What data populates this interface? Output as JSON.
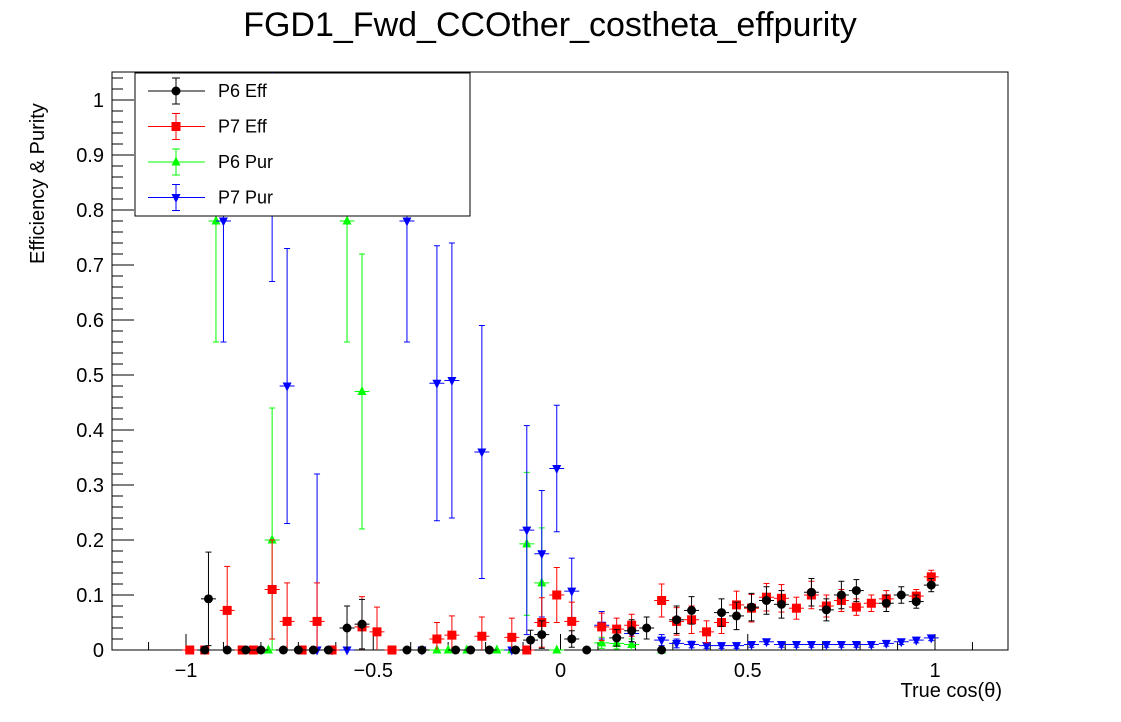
{
  "chart_data": {
    "type": "scatter",
    "title": "FGD1_Fwd_CCOther_costheta_effpurity",
    "xlabel": "True cos(θ)",
    "ylabel": "Efficiency & Purity",
    "xlim": [
      -1.2,
      1.2
    ],
    "ylim": [
      0,
      1.05
    ],
    "x_ticks": [
      {
        "value": -1,
        "label": "−1"
      },
      {
        "value": -0.5,
        "label": "−0.5"
      },
      {
        "value": 0,
        "label": "0"
      },
      {
        "value": 0.5,
        "label": "0.5"
      },
      {
        "value": 1,
        "label": "1"
      }
    ],
    "y_ticks": [
      {
        "value": 0,
        "label": "0"
      },
      {
        "value": 0.1,
        "label": "0.1"
      },
      {
        "value": 0.2,
        "label": "0.2"
      },
      {
        "value": 0.3,
        "label": "0.3"
      },
      {
        "value": 0.4,
        "label": "0.4"
      },
      {
        "value": 0.5,
        "label": "0.5"
      },
      {
        "value": 0.6,
        "label": "0.6"
      },
      {
        "value": 0.7,
        "label": "0.7"
      },
      {
        "value": 0.8,
        "label": "0.8"
      },
      {
        "value": 0.9,
        "label": "0.9"
      },
      {
        "value": 1,
        "label": "1"
      }
    ],
    "grid": false,
    "legend_position": "top-left",
    "series": [
      {
        "name": "P6 Eff",
        "color": "#000000",
        "marker": "circle",
        "points": [
          {
            "x": -0.95,
            "y": 0.0,
            "yerr": 0.0
          },
          {
            "x": -0.94,
            "y": 0.093,
            "yerr": 0.085
          },
          {
            "x": -0.89,
            "y": 0.0,
            "yerr": 0.0
          },
          {
            "x": -0.84,
            "y": 0.0,
            "yerr": 0.0
          },
          {
            "x": -0.8,
            "y": 0.0,
            "yerr": 0.0
          },
          {
            "x": -0.74,
            "y": 0.0,
            "yerr": 0.0
          },
          {
            "x": -0.7,
            "y": 0.0,
            "yerr": 0.0
          },
          {
            "x": -0.66,
            "y": 0.0,
            "yerr": 0.0
          },
          {
            "x": -0.62,
            "y": 0.0,
            "yerr": 0.0
          },
          {
            "x": -0.57,
            "y": 0.04,
            "yerr": 0.04
          },
          {
            "x": -0.53,
            "y": 0.047,
            "yerr": 0.045
          },
          {
            "x": -0.41,
            "y": 0.0,
            "yerr": 0.0
          },
          {
            "x": -0.37,
            "y": 0.0,
            "yerr": 0.0
          },
          {
            "x": -0.28,
            "y": 0.0,
            "yerr": 0.0
          },
          {
            "x": -0.24,
            "y": 0.0,
            "yerr": 0.0
          },
          {
            "x": -0.19,
            "y": 0.0,
            "yerr": 0.0
          },
          {
            "x": -0.12,
            "y": 0.0,
            "yerr": 0.0
          },
          {
            "x": -0.08,
            "y": 0.018,
            "yerr": 0.018
          },
          {
            "x": -0.05,
            "y": 0.028,
            "yerr": 0.025
          },
          {
            "x": 0.03,
            "y": 0.02,
            "yerr": 0.015
          },
          {
            "x": 0.07,
            "y": 0.0,
            "yerr": 0.0
          },
          {
            "x": 0.15,
            "y": 0.022,
            "yerr": 0.015
          },
          {
            "x": 0.19,
            "y": 0.035,
            "yerr": 0.02
          },
          {
            "x": 0.23,
            "y": 0.04,
            "yerr": 0.02
          },
          {
            "x": 0.27,
            "y": 0.0,
            "yerr": 0.0
          },
          {
            "x": 0.31,
            "y": 0.055,
            "yerr": 0.025
          },
          {
            "x": 0.35,
            "y": 0.072,
            "yerr": 0.025
          },
          {
            "x": 0.43,
            "y": 0.068,
            "yerr": 0.025
          },
          {
            "x": 0.47,
            "y": 0.062,
            "yerr": 0.025
          },
          {
            "x": 0.51,
            "y": 0.078,
            "yerr": 0.025
          },
          {
            "x": 0.55,
            "y": 0.09,
            "yerr": 0.025
          },
          {
            "x": 0.59,
            "y": 0.083,
            "yerr": 0.025
          },
          {
            "x": 0.67,
            "y": 0.105,
            "yerr": 0.025
          },
          {
            "x": 0.71,
            "y": 0.073,
            "yerr": 0.02
          },
          {
            "x": 0.75,
            "y": 0.1,
            "yerr": 0.025
          },
          {
            "x": 0.79,
            "y": 0.108,
            "yerr": 0.02
          },
          {
            "x": 0.87,
            "y": 0.085,
            "yerr": 0.015
          },
          {
            "x": 0.91,
            "y": 0.1,
            "yerr": 0.015
          },
          {
            "x": 0.95,
            "y": 0.088,
            "yerr": 0.012
          },
          {
            "x": 0.99,
            "y": 0.118,
            "yerr": 0.012
          }
        ]
      },
      {
        "name": "P7 Eff",
        "color": "#ff0000",
        "marker": "square",
        "points": [
          {
            "x": -0.99,
            "y": 0.0,
            "yerr": 0.0
          },
          {
            "x": -0.95,
            "y": 0.0,
            "yerr": 0.0
          },
          {
            "x": -0.89,
            "y": 0.072,
            "yerr": 0.08
          },
          {
            "x": -0.85,
            "y": 0.0,
            "yerr": 0.0
          },
          {
            "x": -0.82,
            "y": 0.0,
            "yerr": 0.0
          },
          {
            "x": -0.77,
            "y": 0.11,
            "yerr": 0.09
          },
          {
            "x": -0.73,
            "y": 0.052,
            "yerr": 0.07
          },
          {
            "x": -0.69,
            "y": 0.0,
            "yerr": 0.0
          },
          {
            "x": -0.65,
            "y": 0.052,
            "yerr": 0.07
          },
          {
            "x": -0.61,
            "y": 0.0,
            "yerr": 0.0
          },
          {
            "x": -0.53,
            "y": 0.042,
            "yerr": 0.055
          },
          {
            "x": -0.49,
            "y": 0.033,
            "yerr": 0.045
          },
          {
            "x": -0.45,
            "y": 0.0,
            "yerr": 0.0
          },
          {
            "x": -0.33,
            "y": 0.02,
            "yerr": 0.03
          },
          {
            "x": -0.29,
            "y": 0.027,
            "yerr": 0.035
          },
          {
            "x": -0.21,
            "y": 0.025,
            "yerr": 0.035
          },
          {
            "x": -0.13,
            "y": 0.023,
            "yerr": 0.035
          },
          {
            "x": -0.09,
            "y": 0.0,
            "yerr": 0.0
          },
          {
            "x": -0.05,
            "y": 0.05,
            "yerr": 0.045
          },
          {
            "x": -0.01,
            "y": 0.1,
            "yerr": 0.05
          },
          {
            "x": 0.03,
            "y": 0.052,
            "yerr": 0.035
          },
          {
            "x": 0.11,
            "y": 0.042,
            "yerr": 0.025
          },
          {
            "x": 0.15,
            "y": 0.038,
            "yerr": 0.02
          },
          {
            "x": 0.19,
            "y": 0.045,
            "yerr": 0.02
          },
          {
            "x": 0.27,
            "y": 0.09,
            "yerr": 0.03
          },
          {
            "x": 0.31,
            "y": 0.052,
            "yerr": 0.025
          },
          {
            "x": 0.35,
            "y": 0.055,
            "yerr": 0.025
          },
          {
            "x": 0.39,
            "y": 0.033,
            "yerr": 0.02
          },
          {
            "x": 0.43,
            "y": 0.05,
            "yerr": 0.02
          },
          {
            "x": 0.47,
            "y": 0.082,
            "yerr": 0.025
          },
          {
            "x": 0.51,
            "y": 0.076,
            "yerr": 0.025
          },
          {
            "x": 0.55,
            "y": 0.096,
            "yerr": 0.025
          },
          {
            "x": 0.59,
            "y": 0.094,
            "yerr": 0.025
          },
          {
            "x": 0.63,
            "y": 0.076,
            "yerr": 0.02
          },
          {
            "x": 0.67,
            "y": 0.1,
            "yerr": 0.025
          },
          {
            "x": 0.71,
            "y": 0.08,
            "yerr": 0.02
          },
          {
            "x": 0.75,
            "y": 0.09,
            "yerr": 0.02
          },
          {
            "x": 0.79,
            "y": 0.078,
            "yerr": 0.015
          },
          {
            "x": 0.83,
            "y": 0.085,
            "yerr": 0.015
          },
          {
            "x": 0.87,
            "y": 0.093,
            "yerr": 0.015
          },
          {
            "x": 0.95,
            "y": 0.098,
            "yerr": 0.012
          },
          {
            "x": 0.99,
            "y": 0.133,
            "yerr": 0.012
          }
        ]
      },
      {
        "name": "P6 Pur",
        "color": "#00ff00",
        "marker": "triangle-up",
        "points": [
          {
            "x": -0.92,
            "y": 0.78,
            "yerr": 0.22
          },
          {
            "x": -0.78,
            "y": 0.0,
            "yerr": 0.0
          },
          {
            "x": -0.77,
            "y": 0.2,
            "yerr": 0.24
          },
          {
            "x": -0.57,
            "y": 0.78,
            "yerr": 0.22
          },
          {
            "x": -0.53,
            "y": 0.47,
            "yerr": 0.25
          },
          {
            "x": -0.33,
            "y": 0.0,
            "yerr": 0.0
          },
          {
            "x": -0.3,
            "y": 0.0,
            "yerr": 0.0
          },
          {
            "x": -0.25,
            "y": 0.0,
            "yerr": 0.0
          },
          {
            "x": -0.17,
            "y": 0.0,
            "yerr": 0.0
          },
          {
            "x": -0.13,
            "y": 0.0,
            "yerr": 0.0
          },
          {
            "x": -0.09,
            "y": 0.193,
            "yerr": 0.13
          },
          {
            "x": -0.05,
            "y": 0.122,
            "yerr": 0.1
          },
          {
            "x": -0.01,
            "y": 0.0,
            "yerr": 0.0
          },
          {
            "x": 0.11,
            "y": 0.013,
            "yerr": 0.01
          },
          {
            "x": 0.15,
            "y": 0.012,
            "yerr": 0.01
          },
          {
            "x": 0.19,
            "y": 0.01,
            "yerr": 0.01
          },
          {
            "x": 0.27,
            "y": 0.0,
            "yerr": 0.0
          }
        ]
      },
      {
        "name": "P7 Pur",
        "color": "#0000ff",
        "marker": "triangle-down",
        "points": [
          {
            "x": -0.9,
            "y": 0.78,
            "yerr": 0.22
          },
          {
            "x": -0.77,
            "y": 0.92,
            "yerr": 0.25
          },
          {
            "x": -0.73,
            "y": 0.48,
            "yerr": 0.25
          },
          {
            "x": -0.65,
            "y": 0.0,
            "yerr": 0.32
          },
          {
            "x": -0.61,
            "y": 0.0,
            "yerr": 0.0
          },
          {
            "x": -0.57,
            "y": 0.0,
            "yerr": 0.0
          },
          {
            "x": -0.41,
            "y": 0.78,
            "yerr": 0.22
          },
          {
            "x": -0.37,
            "y": 0.0,
            "yerr": 0.0
          },
          {
            "x": -0.33,
            "y": 0.485,
            "yerr": 0.25
          },
          {
            "x": -0.29,
            "y": 0.49,
            "yerr": 0.25
          },
          {
            "x": -0.21,
            "y": 0.36,
            "yerr": 0.23
          },
          {
            "x": -0.13,
            "y": 0.0,
            "yerr": 0.0
          },
          {
            "x": -0.09,
            "y": 0.218,
            "yerr": 0.19
          },
          {
            "x": -0.05,
            "y": 0.175,
            "yerr": 0.115
          },
          {
            "x": -0.01,
            "y": 0.33,
            "yerr": 0.115
          },
          {
            "x": 0.03,
            "y": 0.107,
            "yerr": 0.06
          },
          {
            "x": 0.11,
            "y": 0.045,
            "yerr": 0.025
          },
          {
            "x": 0.19,
            "y": 0.03,
            "yerr": 0.015
          },
          {
            "x": 0.27,
            "y": 0.018,
            "yerr": 0.01
          },
          {
            "x": 0.31,
            "y": 0.012,
            "yerr": 0.008
          },
          {
            "x": 0.35,
            "y": 0.01,
            "yerr": 0.006
          },
          {
            "x": 0.39,
            "y": 0.008,
            "yerr": 0.005
          },
          {
            "x": 0.43,
            "y": 0.008,
            "yerr": 0.005
          },
          {
            "x": 0.47,
            "y": 0.008,
            "yerr": 0.005
          },
          {
            "x": 0.51,
            "y": 0.01,
            "yerr": 0.005
          },
          {
            "x": 0.55,
            "y": 0.015,
            "yerr": 0.005
          },
          {
            "x": 0.59,
            "y": 0.01,
            "yerr": 0.005
          },
          {
            "x": 0.63,
            "y": 0.01,
            "yerr": 0.005
          },
          {
            "x": 0.67,
            "y": 0.01,
            "yerr": 0.005
          },
          {
            "x": 0.71,
            "y": 0.01,
            "yerr": 0.005
          },
          {
            "x": 0.75,
            "y": 0.01,
            "yerr": 0.005
          },
          {
            "x": 0.79,
            "y": 0.01,
            "yerr": 0.005
          },
          {
            "x": 0.83,
            "y": 0.01,
            "yerr": 0.005
          },
          {
            "x": 0.87,
            "y": 0.012,
            "yerr": 0.005
          },
          {
            "x": 0.91,
            "y": 0.015,
            "yerr": 0.005
          },
          {
            "x": 0.95,
            "y": 0.018,
            "yerr": 0.005
          },
          {
            "x": 0.99,
            "y": 0.022,
            "yerr": 0.005
          }
        ]
      }
    ]
  }
}
